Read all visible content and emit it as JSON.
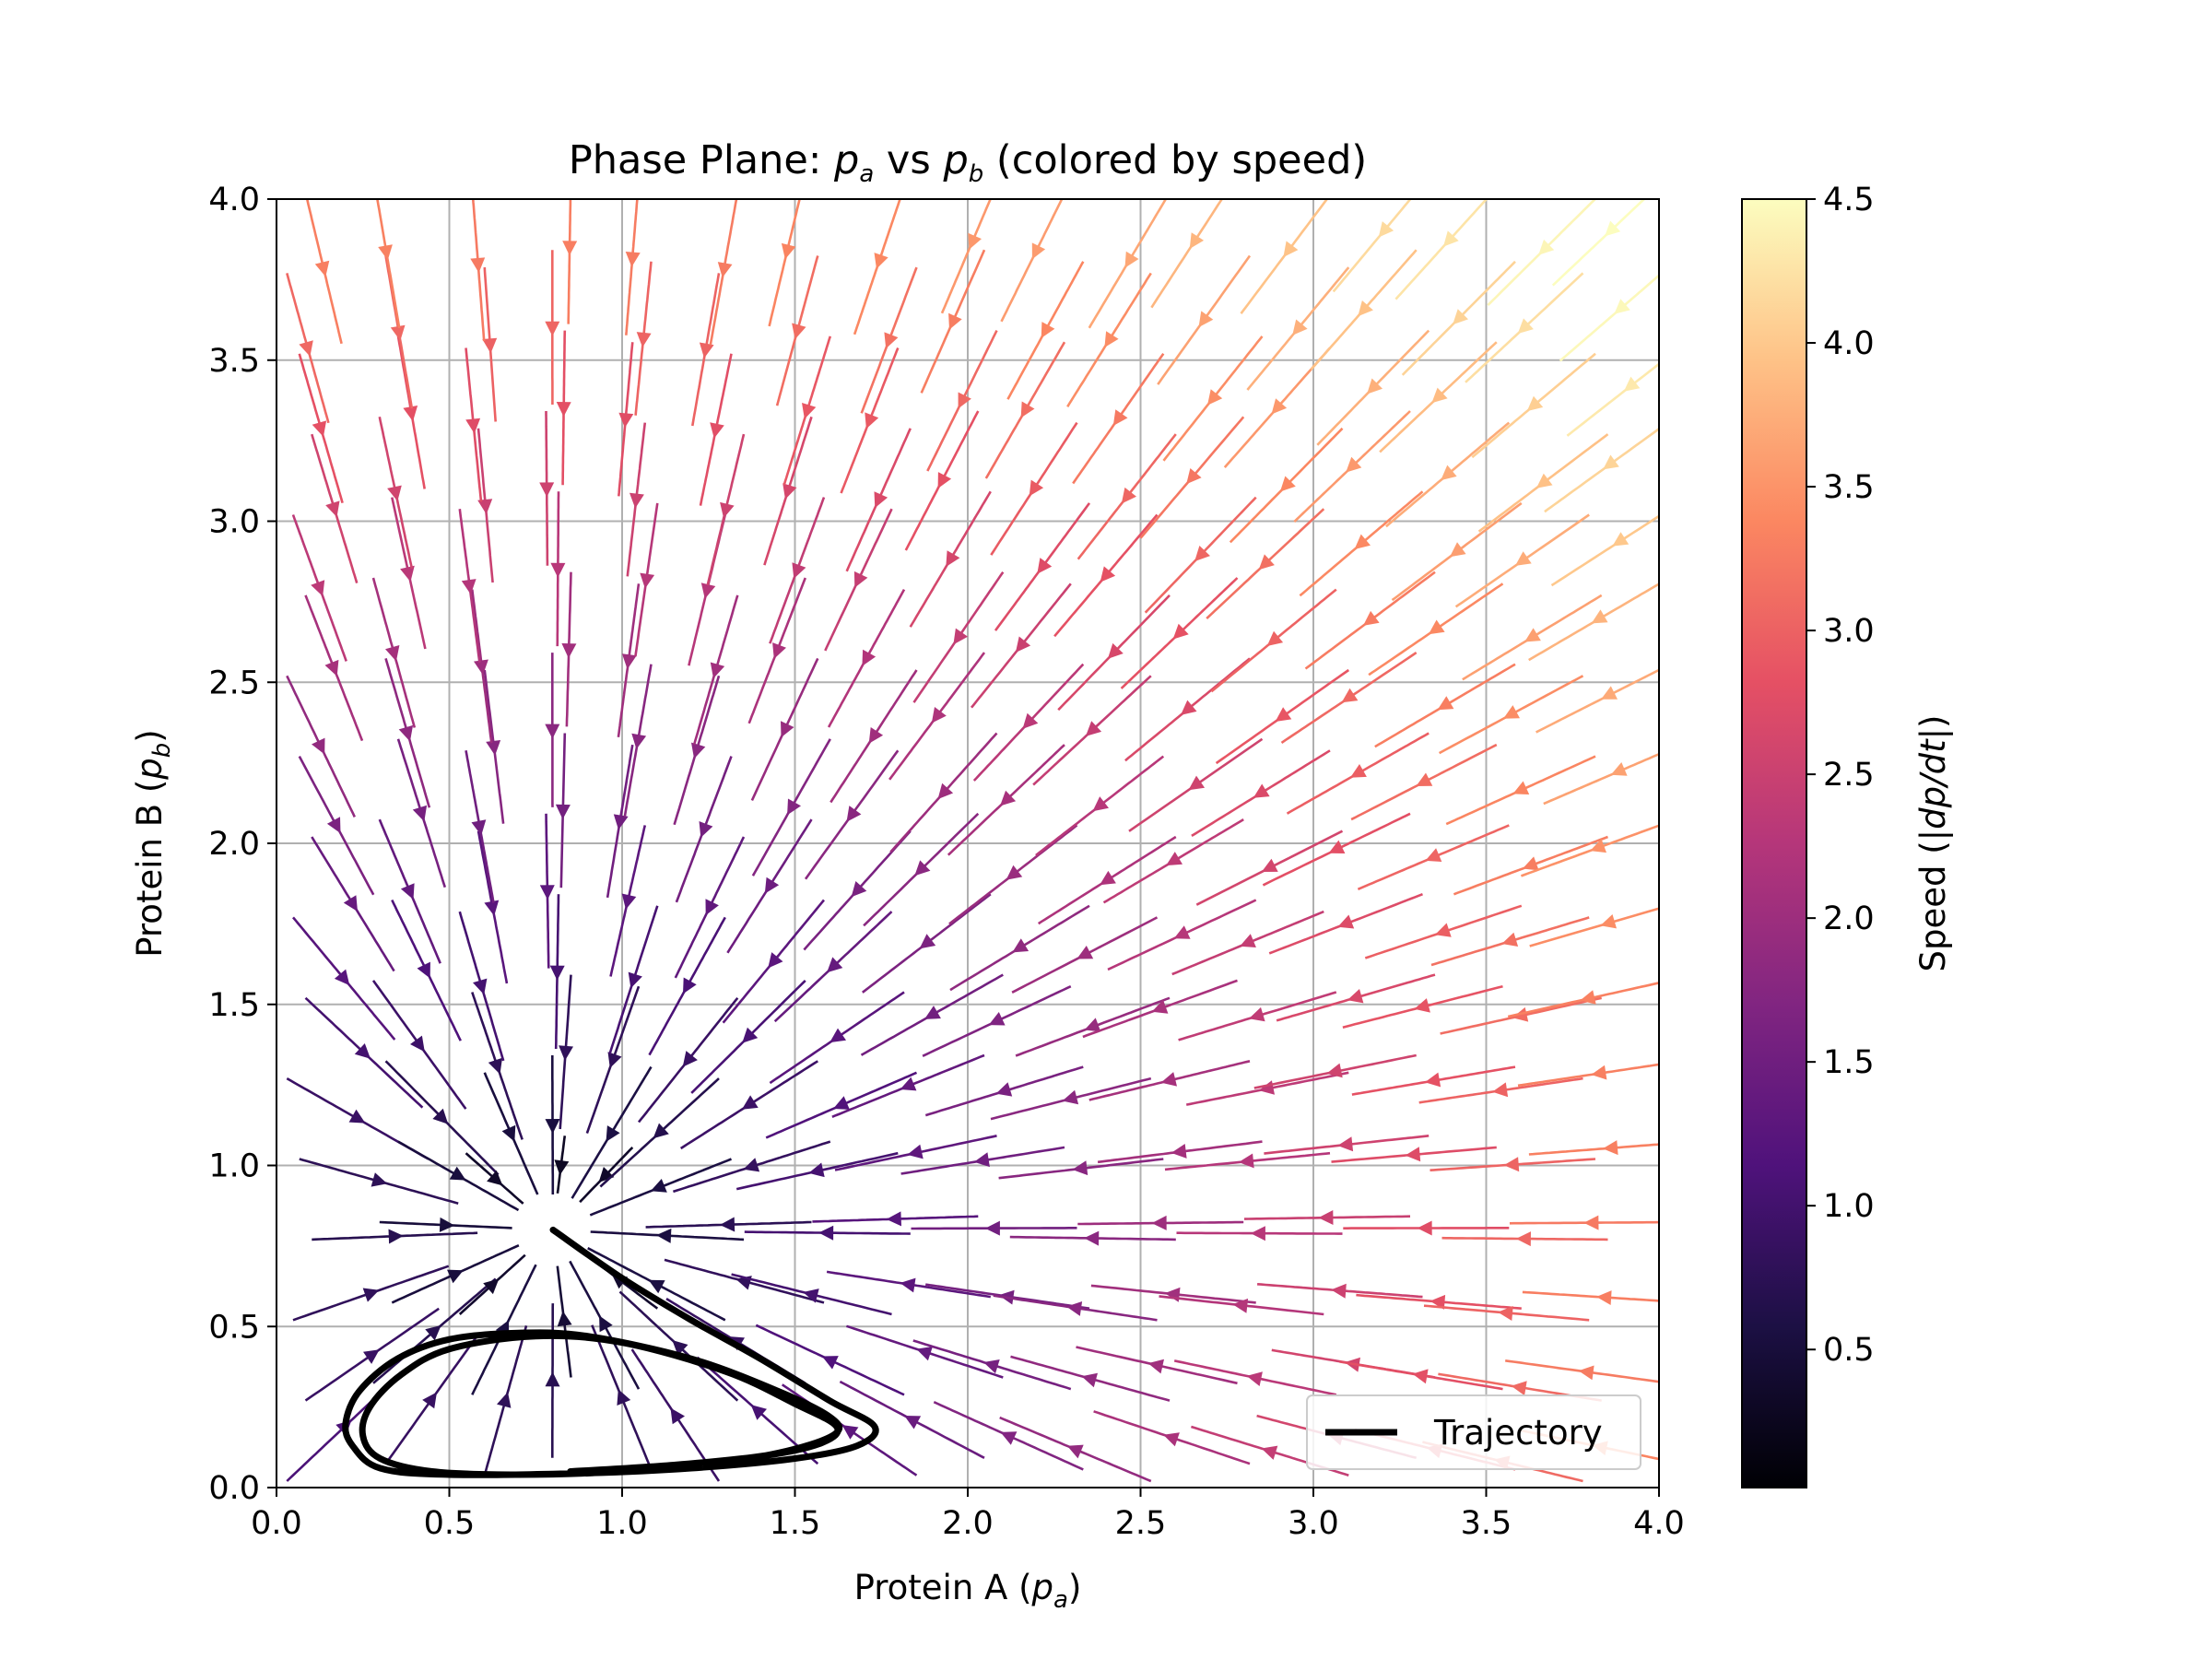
{
  "chart_data": {
    "type": "streamplot",
    "title": {
      "prefix": "Phase Plane: ",
      "var1": "p",
      "sub1": "a",
      "mid": " vs ",
      "var2": "p",
      "sub2": "b",
      "suffix": " (colored by speed)"
    },
    "xlabel": {
      "prefix": "Protein A (",
      "var": "p",
      "sub": "a",
      "suffix": ")"
    },
    "ylabel": {
      "prefix": "Protein B (",
      "var": "p",
      "sub": "b",
      "suffix": ")"
    },
    "xlim": [
      0,
      4
    ],
    "ylim": [
      0,
      4
    ],
    "xticks": [
      "0.0",
      "0.5",
      "1.0",
      "1.5",
      "2.0",
      "2.5",
      "3.0",
      "3.5",
      "4.0"
    ],
    "yticks": [
      "0.0",
      "0.5",
      "1.0",
      "1.5",
      "2.0",
      "2.5",
      "3.0",
      "3.5",
      "4.0"
    ],
    "grid": true,
    "fixed_point": [
      0.8,
      0.8
    ],
    "colorbar": {
      "label": "Speed (|dp/dt|)",
      "label_parts": {
        "prefix": "Speed (|",
        "var": "dp/dt",
        "suffix": "|)"
      },
      "range": [
        0.02,
        4.5
      ],
      "ticks": [
        "0.5",
        "1.0",
        "1.5",
        "2.0",
        "2.5",
        "3.0",
        "3.5",
        "4.0",
        "4.5"
      ],
      "colormap": "magma",
      "stops": [
        "#000004",
        "#1c1044",
        "#4f127b",
        "#812581",
        "#b5367a",
        "#e55064",
        "#fb8761",
        "#fec287",
        "#fcfdbf"
      ]
    },
    "legend": {
      "entries": [
        "Trajectory"
      ],
      "placement": "lower-right"
    },
    "trajectory": {
      "name": "Trajectory",
      "color": "#000000",
      "points": [
        [
          0.8,
          0.8
        ],
        [
          1.0,
          0.65
        ],
        [
          1.2,
          0.52
        ],
        [
          1.4,
          0.4
        ],
        [
          1.6,
          0.27
        ],
        [
          1.73,
          0.19
        ],
        [
          1.68,
          0.13
        ],
        [
          1.5,
          0.09
        ],
        [
          1.2,
          0.06
        ],
        [
          0.9,
          0.045
        ],
        [
          0.5,
          0.04
        ],
        [
          0.3,
          0.06
        ],
        [
          0.22,
          0.13
        ],
        [
          0.2,
          0.2
        ],
        [
          0.24,
          0.3
        ],
        [
          0.35,
          0.4
        ],
        [
          0.5,
          0.46
        ],
        [
          0.7,
          0.48
        ],
        [
          0.9,
          0.47
        ],
        [
          1.2,
          0.4
        ],
        [
          1.45,
          0.3
        ],
        [
          1.6,
          0.22
        ],
        [
          1.62,
          0.17
        ],
        [
          1.5,
          0.12
        ],
        [
          1.3,
          0.08
        ],
        [
          1.0,
          0.05
        ],
        [
          0.7,
          0.04
        ],
        [
          0.45,
          0.05
        ],
        [
          0.3,
          0.09
        ],
        [
          0.25,
          0.16
        ],
        [
          0.27,
          0.25
        ],
        [
          0.36,
          0.35
        ],
        [
          0.5,
          0.43
        ],
        [
          0.75,
          0.47
        ],
        [
          1.0,
          0.45
        ],
        [
          1.3,
          0.36
        ],
        [
          1.5,
          0.26
        ],
        [
          1.62,
          0.19
        ],
        [
          1.58,
          0.14
        ],
        [
          1.42,
          0.1
        ],
        [
          1.15,
          0.07
        ],
        [
          0.85,
          0.05
        ]
      ]
    }
  }
}
